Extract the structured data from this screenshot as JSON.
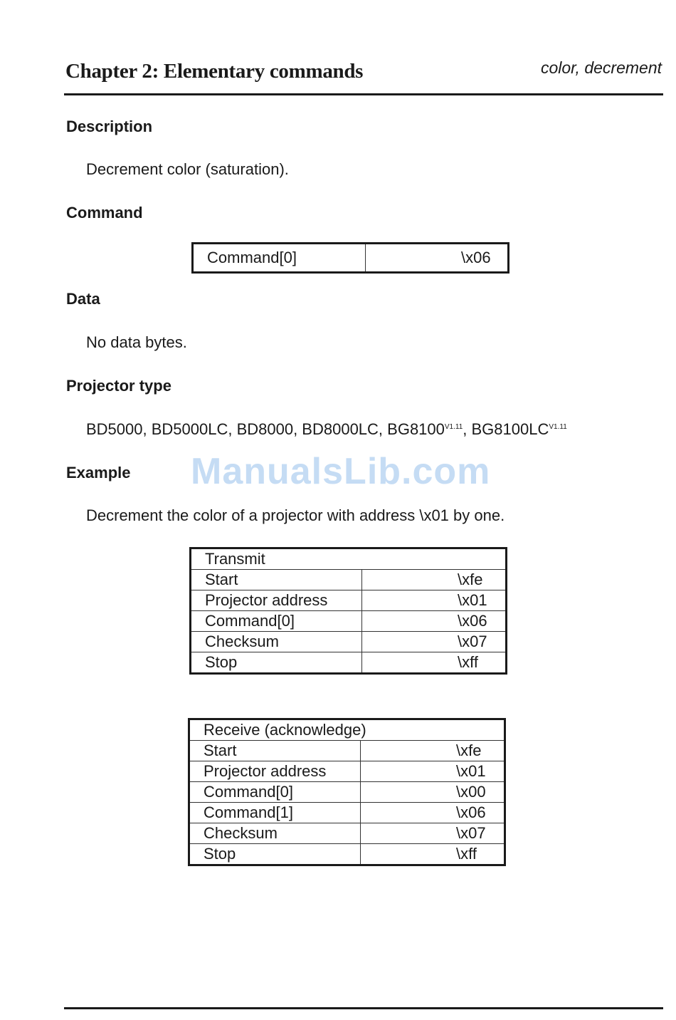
{
  "header": {
    "chapter": "Chapter 2: Elementary commands",
    "topic": "color, decrement"
  },
  "sections": {
    "description": {
      "heading": "Description",
      "text": "Decrement color (saturation)."
    },
    "command": {
      "heading": "Command",
      "rows": [
        {
          "label": "Command[0]",
          "value": "\\x06"
        }
      ]
    },
    "data": {
      "heading": "Data",
      "text": "No data bytes."
    },
    "projector_type": {
      "heading": "Projector type",
      "models": [
        "BD5000, BD5000LC, BD8000, BD8000LC, BG8100",
        "V1.11",
        ", BG8100LC",
        "V1.11"
      ]
    },
    "example": {
      "heading": "Example",
      "text": "Decrement the color of a projector with address \\x01 by one."
    }
  },
  "transmit": {
    "title": "Transmit",
    "rows": [
      {
        "label": "Start",
        "value": "\\xfe"
      },
      {
        "label": "Projector address",
        "value": "\\x01"
      },
      {
        "label": "Command[0]",
        "value": "\\x06"
      },
      {
        "label": "Checksum",
        "value": "\\x07"
      },
      {
        "label": "Stop",
        "value": "\\xff"
      }
    ]
  },
  "receive": {
    "title": "Receive (acknowledge)",
    "rows": [
      {
        "label": "Start",
        "value": "\\xfe"
      },
      {
        "label": "Projector address",
        "value": "\\x01"
      },
      {
        "label": "Command[0]",
        "value": "\\x00"
      },
      {
        "label": "Command[1]",
        "value": "\\x06"
      },
      {
        "label": "Checksum",
        "value": "\\x07"
      },
      {
        "label": "Stop",
        "value": "\\xff"
      }
    ]
  },
  "watermark": "ManualsLib.com"
}
